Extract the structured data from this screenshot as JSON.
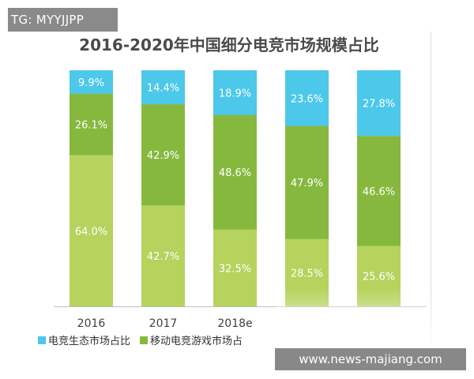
{
  "watermark_top": "TG: MYYJJPP",
  "watermark_bottom": "www.news-majiang.com",
  "colors": {
    "ecosystem": "#4cc8ea",
    "mobile": "#86b83e",
    "other": "#b5d35d"
  },
  "chart_data": {
    "type": "bar",
    "stacked": true,
    "title": "2016-2020年中国细分电竞市场规模占比",
    "categories": [
      "2016",
      "2017",
      "2018e",
      "",
      ""
    ],
    "series": [
      {
        "values": [
          64.0,
          42.7,
          32.5,
          28.5,
          25.6
        ]
      },
      {
        "name": "移动电竞游戏市场占",
        "values": [
          26.1,
          42.9,
          48.6,
          47.9,
          46.6
        ]
      },
      {
        "name": "电竞生态市场占比",
        "values": [
          9.9,
          14.4,
          18.9,
          23.6,
          27.8
        ]
      }
    ],
    "data_labels": [
      [
        "64.0%",
        "42.7%",
        "32.5%",
        "28.5%",
        "25.6%"
      ],
      [
        "26.1%",
        "42.9%",
        "48.6%",
        "47.9%",
        "46.6%"
      ],
      [
        "9.9%",
        "14.4%",
        "18.9%",
        "23.6%",
        "27.8%"
      ]
    ],
    "ylim": [
      0,
      100
    ],
    "grid": false,
    "legend_position": "bottom-left"
  }
}
